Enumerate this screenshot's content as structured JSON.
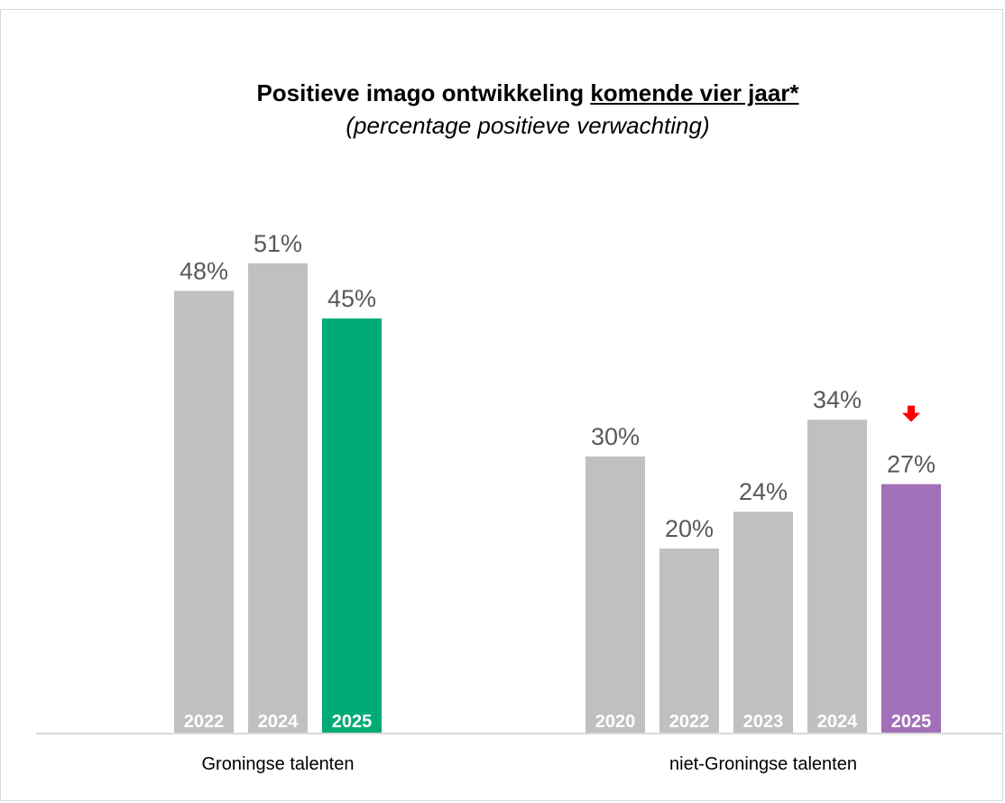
{
  "chart_data": {
    "type": "bar",
    "title_main": "Positieve imago ontwikkeling ",
    "title_underlined": "komende vier jaar*",
    "subtitle": "(percentage positieve verwachting)",
    "groups": [
      {
        "name": "Groningse talenten",
        "bars": [
          {
            "year": "2022",
            "value": 48,
            "label": "48%"
          },
          {
            "year": "2024",
            "value": 51,
            "label": "51%"
          },
          {
            "year": "2025",
            "value": 45,
            "label": "45%"
          }
        ]
      },
      {
        "name": "niet-Groningse talenten",
        "bars": [
          {
            "year": "2020",
            "value": 30,
            "label": "30%"
          },
          {
            "year": "2022",
            "value": 20,
            "label": "20%"
          },
          {
            "year": "2023",
            "value": 24,
            "label": "24%"
          },
          {
            "year": "2024",
            "value": 34,
            "label": "34%"
          },
          {
            "year": "2025",
            "value": 27,
            "label": "27%",
            "indicator": "down-arrow"
          }
        ]
      }
    ],
    "colors": {
      "past": "#c0c0c0",
      "groningse_2025": "#00ab76",
      "niet_groningse_2025": "#a270b8",
      "down_arrow": "#ff0000"
    },
    "ylim": [
      0,
      60
    ],
    "grid": false,
    "legend": "none"
  }
}
